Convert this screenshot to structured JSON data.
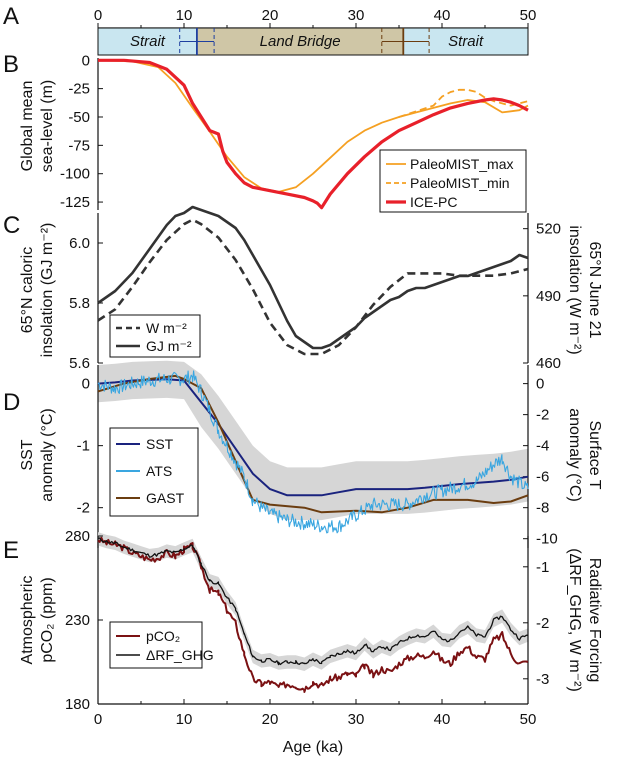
{
  "panels": {
    "A": "A",
    "B": "B",
    "C": "C",
    "D": "D",
    "E": "E"
  },
  "x_axis": {
    "label": "Age (ka)",
    "ticks": [
      "0",
      "10",
      "20",
      "30",
      "40",
      "50"
    ],
    "range": [
      0,
      50
    ]
  },
  "colors": {
    "strait": "#c9e6f0",
    "land_bridge": "#cfc6a6",
    "paleomist": "#f5a022",
    "icepc": "#e8202a",
    "cal_dark": "#333333",
    "sst": "#1a237e",
    "ats": "#3aa6e0",
    "gast": "#6b3d10",
    "band": "#d6d6d6",
    "pco2": "#7b1113",
    "rf": "#111111"
  },
  "chart_data": [
    {
      "panel": "A",
      "type": "table",
      "segments": [
        {
          "label": "Strait",
          "from": 0,
          "to": 11.5
        },
        {
          "label": "Land Bridge",
          "from": 11.5,
          "to": 35.5
        },
        {
          "label": "Strait",
          "from": 35.5,
          "to": 50
        }
      ],
      "markers": [
        {
          "color": "blue",
          "style": "dashed",
          "x": 9.5
        },
        {
          "color": "blue",
          "style": "solid",
          "x": 11.5
        },
        {
          "color": "blue",
          "style": "dashed",
          "x": 13.5
        },
        {
          "color": "brown",
          "style": "dashed",
          "x": 33
        },
        {
          "color": "brown",
          "style": "solid",
          "x": 35.5
        },
        {
          "color": "brown",
          "style": "dashed",
          "x": 38.5
        }
      ]
    },
    {
      "panel": "B",
      "type": "line",
      "ylabel": "Global mean sea-level (m)",
      "yticks": [
        "0",
        "-25",
        "-50",
        "-75",
        "-100",
        "-125"
      ],
      "ylim": [
        -132,
        2
      ],
      "series": [
        {
          "name": "PaleoMIST_max",
          "style": "solid",
          "color": "#f5a022",
          "x": [
            0,
            4,
            7,
            9,
            11,
            13,
            15,
            17,
            19,
            21,
            23,
            25,
            27,
            29,
            31,
            33,
            35,
            37,
            39,
            41,
            43,
            45,
            47,
            49,
            50
          ],
          "y": [
            0,
            -1,
            -6,
            -20,
            -42,
            -63,
            -85,
            -103,
            -113,
            -116,
            -112,
            -100,
            -86,
            -72,
            -62,
            -55,
            -50,
            -46,
            -42,
            -38,
            -35,
            -37,
            -46,
            -44,
            -40
          ]
        },
        {
          "name": "PaleoMIST_min",
          "style": "dashed",
          "color": "#f5a022",
          "x": [
            35,
            37,
            39,
            40,
            41,
            42,
            43,
            44,
            45,
            46,
            47,
            48,
            49,
            50
          ],
          "y": [
            -50,
            -45,
            -40,
            -32,
            -28,
            -26,
            -26,
            -28,
            -33,
            -36,
            -38,
            -40,
            -38,
            -36
          ]
        },
        {
          "name": "ICE-PC",
          "style": "solid",
          "color": "#e8202a",
          "x": [
            0,
            3,
            6,
            8,
            10,
            11,
            12,
            13,
            14,
            14.5,
            15,
            16,
            17,
            18,
            20,
            22,
            24,
            25,
            25.5,
            26,
            27,
            29,
            31,
            33,
            35,
            37,
            39,
            41,
            43,
            45,
            46,
            47,
            48,
            49,
            50
          ],
          "y": [
            0,
            0,
            -2,
            -8,
            -22,
            -38,
            -50,
            -62,
            -65,
            -80,
            -90,
            -100,
            -108,
            -112,
            -115,
            -118,
            -121,
            -124,
            -126,
            -130,
            -118,
            -100,
            -85,
            -72,
            -62,
            -55,
            -48,
            -42,
            -38,
            -35,
            -34,
            -35,
            -37,
            -40,
            -44
          ]
        }
      ]
    },
    {
      "panel": "C",
      "type": "line",
      "ylabel_left": "65°N caloric insolation (GJ m⁻²)",
      "ylabel_right": "65°N June 21 insolation (W m⁻²)",
      "yticks_left": [
        "5.6",
        "5.8",
        "6.0"
      ],
      "ylim_left": [
        5.6,
        6.1
      ],
      "yticks_right": [
        "460",
        "490",
        "520"
      ],
      "ylim_right": [
        460,
        527
      ],
      "legend": [
        {
          "label": "W m⁻²",
          "style": "dashed"
        },
        {
          "label": "GJ m⁻²",
          "style": "solid"
        }
      ],
      "series": [
        {
          "name": "W m⁻²",
          "axis": "right",
          "style": "dashed",
          "x": [
            0,
            2,
            4,
            6,
            8,
            10,
            11,
            12,
            14,
            16,
            18,
            20,
            22,
            24,
            26,
            28,
            30,
            32,
            34,
            36,
            38,
            40,
            42,
            44,
            46,
            48,
            50
          ],
          "y": [
            479,
            484,
            494,
            505,
            515,
            522,
            524,
            522,
            516,
            506,
            493,
            478,
            468,
            464,
            464,
            468,
            476,
            486,
            494,
            500,
            500,
            500,
            499,
            499,
            499,
            500,
            502
          ]
        },
        {
          "name": "GJ m⁻²",
          "axis": "left",
          "style": "solid",
          "x": [
            0,
            1,
            2,
            3,
            4,
            5,
            6,
            7,
            8,
            9,
            10,
            11,
            12,
            13,
            14,
            15,
            16,
            17,
            18,
            19,
            20,
            21,
            22,
            23,
            24,
            25,
            26,
            27,
            28,
            29,
            30,
            31,
            32,
            33,
            34,
            35,
            36,
            37,
            38,
            39,
            40,
            41,
            42,
            43,
            44,
            45,
            46,
            47,
            48,
            49,
            50
          ],
          "y": [
            5.8,
            5.82,
            5.84,
            5.87,
            5.9,
            5.94,
            5.98,
            6.02,
            6.06,
            6.09,
            6.1,
            6.12,
            6.11,
            6.1,
            6.09,
            6.07,
            6.05,
            6.01,
            5.96,
            5.91,
            5.86,
            5.8,
            5.74,
            5.69,
            5.67,
            5.65,
            5.65,
            5.66,
            5.68,
            5.7,
            5.72,
            5.75,
            5.77,
            5.79,
            5.81,
            5.82,
            5.84,
            5.85,
            5.85,
            5.86,
            5.87,
            5.88,
            5.89,
            5.89,
            5.9,
            5.91,
            5.92,
            5.93,
            5.94,
            5.96,
            5.95
          ]
        }
      ]
    },
    {
      "panel": "D",
      "type": "line",
      "ylabel_left": "SST anomaly (°C)",
      "ylabel_right": "Surface T anomaly (°C)",
      "yticks_left": [
        "0",
        "-1",
        "-2"
      ],
      "ylim_left": [
        -2.65,
        0.3
      ],
      "yticks_right": [
        "0",
        "-2",
        "-4",
        "-6",
        "-8",
        "-10"
      ],
      "ylim_right": [
        -10.6,
        1.2
      ],
      "legend": [
        {
          "label": "SST"
        },
        {
          "label": "ATS"
        },
        {
          "label": "GAST"
        }
      ],
      "series": [
        {
          "name": "SST",
          "axis": "left",
          "x": [
            0,
            2,
            4,
            6,
            8,
            10,
            12,
            14,
            16,
            18,
            20,
            22,
            24,
            26,
            28,
            30,
            32,
            34,
            36,
            38,
            40,
            42,
            44,
            46,
            48,
            50
          ],
          "y": [
            0,
            0.02,
            0.05,
            0.06,
            0.07,
            0.05,
            -0.3,
            -0.65,
            -1.05,
            -1.45,
            -1.7,
            -1.8,
            -1.8,
            -1.8,
            -1.75,
            -1.7,
            -1.7,
            -1.7,
            -1.7,
            -1.68,
            -1.65,
            -1.62,
            -1.6,
            -1.58,
            -1.55,
            -1.5
          ]
        },
        {
          "name": "GAST",
          "axis": "right",
          "x": [
            0,
            3,
            6,
            9,
            10,
            11,
            12,
            14,
            16,
            18,
            20,
            24,
            26,
            30,
            33,
            36,
            39,
            43,
            46,
            48,
            50
          ],
          "y": [
            -0.5,
            0,
            0.3,
            0.5,
            0.3,
            0,
            -0.3,
            -2.5,
            -5,
            -7.5,
            -7.8,
            -8,
            -8.3,
            -8.2,
            -8.3,
            -8,
            -7.5,
            -7.5,
            -7.7,
            -7.6,
            -7.2
          ]
        },
        {
          "name": "ATS",
          "axis": "right",
          "x": [
            0,
            2,
            4,
            6,
            8,
            10,
            11,
            12,
            14,
            16,
            17,
            18,
            19,
            20,
            22,
            24,
            26,
            28,
            30,
            32,
            34,
            36,
            38,
            40,
            42,
            44,
            46,
            47,
            48,
            50
          ],
          "y": [
            0,
            -0.3,
            0,
            0.2,
            0.3,
            0.3,
            0.5,
            -0.5,
            -3,
            -5,
            -6,
            -7.5,
            -8,
            -8.4,
            -8.8,
            -9,
            -9.2,
            -9.2,
            -8.5,
            -7.8,
            -7.8,
            -7.8,
            -7.2,
            -6.9,
            -6.6,
            -6.3,
            -5.2,
            -4.8,
            -6,
            -6.8
          ]
        }
      ]
    },
    {
      "panel": "E",
      "type": "line",
      "ylabel_left": "Atmospheric pCO₂ (ppm)",
      "ylabel_right": "Radiative Forcing (ΔRF_GHG, W m⁻²)",
      "yticks_left": [
        "180",
        "230",
        "280"
      ],
      "ylim_left": [
        180,
        280
      ],
      "yticks_right": [
        "-1",
        "-2",
        "-3"
      ],
      "ylim_right": [
        -3.45,
        -0.45
      ],
      "legend": [
        {
          "label": "pCO₂"
        },
        {
          "label": "ΔRF_GHG"
        }
      ],
      "series": [
        {
          "name": "pCO₂",
          "axis": "left",
          "x": [
            0,
            1,
            2,
            3,
            4,
            5,
            6,
            7,
            8,
            9,
            10,
            11,
            12,
            13,
            14,
            15,
            16,
            17,
            18,
            19,
            20,
            21,
            22,
            23,
            24,
            25,
            26,
            27,
            28,
            29,
            30,
            31,
            32,
            33,
            34,
            35,
            36,
            37,
            38,
            39,
            40,
            41,
            42,
            43,
            44,
            45,
            46,
            47,
            48,
            49,
            50
          ],
          "y": [
            278,
            276,
            275,
            273,
            270,
            268,
            266,
            267,
            270,
            268,
            272,
            274,
            262,
            248,
            246,
            236,
            228,
            210,
            195,
            192,
            193,
            190,
            192,
            191,
            189,
            193,
            191,
            195,
            196,
            198,
            197,
            203,
            197,
            201,
            199,
            204,
            207,
            209,
            208,
            212,
            206,
            204,
            211,
            214,
            208,
            207,
            218,
            221,
            210,
            204,
            205
          ]
        },
        {
          "name": "ΔRF_GHG",
          "axis": "right",
          "x": [
            0,
            1,
            2,
            3,
            4,
            5,
            6,
            7,
            8,
            9,
            10,
            11,
            12,
            13,
            14,
            15,
            16,
            17,
            18,
            19,
            20,
            21,
            22,
            23,
            24,
            25,
            26,
            27,
            28,
            29,
            30,
            31,
            32,
            33,
            34,
            35,
            36,
            37,
            38,
            39,
            40,
            41,
            42,
            43,
            44,
            45,
            46,
            47,
            48,
            49,
            50
          ],
          "y": [
            -0.5,
            -0.55,
            -0.58,
            -0.65,
            -0.7,
            -0.75,
            -0.8,
            -0.78,
            -0.72,
            -0.75,
            -0.68,
            -0.62,
            -0.95,
            -1.25,
            -1.3,
            -1.55,
            -1.75,
            -2.2,
            -2.6,
            -2.68,
            -2.66,
            -2.72,
            -2.7,
            -2.7,
            -2.74,
            -2.65,
            -2.72,
            -2.6,
            -2.55,
            -2.5,
            -2.55,
            -2.38,
            -2.52,
            -2.42,
            -2.48,
            -2.36,
            -2.28,
            -2.22,
            -2.25,
            -2.15,
            -2.3,
            -2.32,
            -2.16,
            -2.08,
            -2.22,
            -2.25,
            -1.96,
            -1.88,
            -2.12,
            -2.28,
            -2.22
          ]
        }
      ]
    }
  ]
}
